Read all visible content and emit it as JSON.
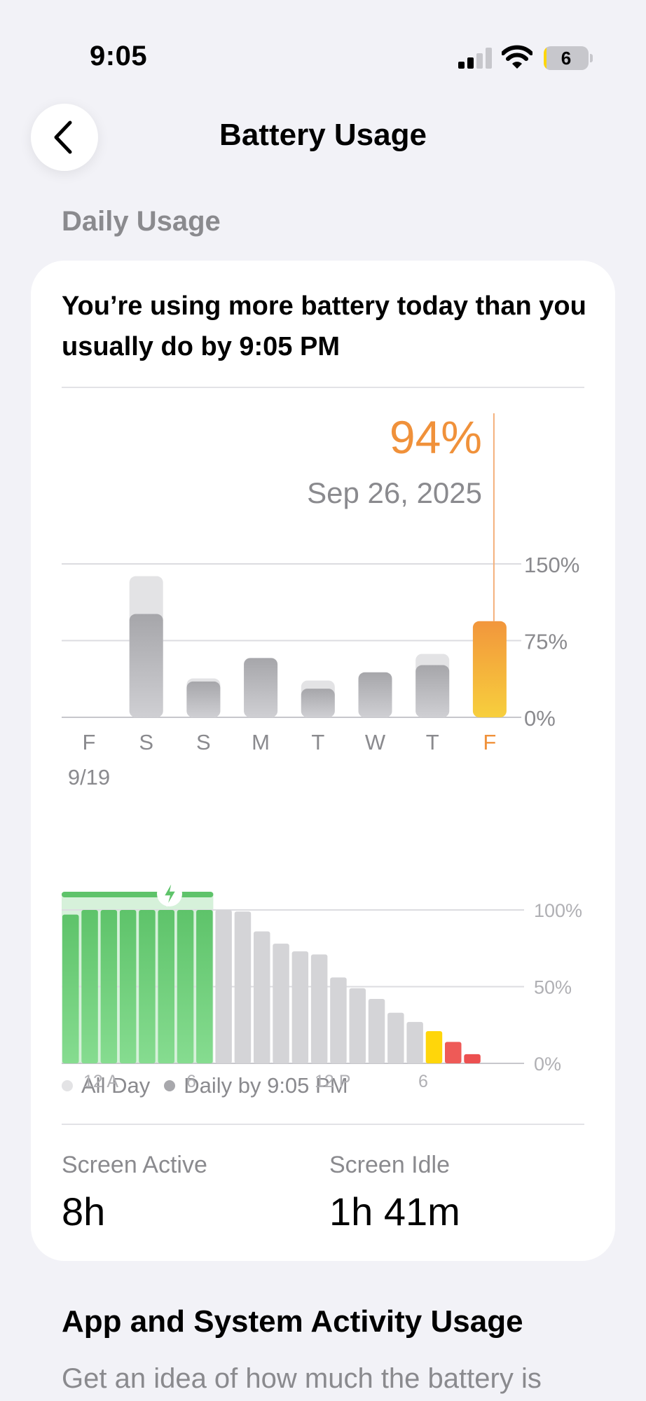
{
  "status_bar": {
    "time": "9:05",
    "battery_level": "6",
    "battery_color": "#ffd60a"
  },
  "nav": {
    "back_icon": "chevron-left-icon",
    "title": "Battery Usage"
  },
  "daily_usage": {
    "section_header": "Daily Usage",
    "headline": "You’re using more battery today than you usually do by 9:05 PM",
    "selected_value": "94%",
    "selected_date": "Sep 26, 2025",
    "legend": {
      "all_day": "All Day",
      "daily_by": "Daily by 9:05 PM"
    },
    "screen_active_label": "Screen Active",
    "screen_active_value": "8h",
    "screen_idle_label": "Screen Idle",
    "screen_idle_value": "1h 41m"
  },
  "colors": {
    "accent_orange": "#f0913a",
    "charge_green": "#5ec36a",
    "gray_bar": "#b7b7bb",
    "light_gray_bar": "#e3e3e5",
    "low_yellow": "#ffd60a",
    "low_red": "#ec5050"
  },
  "chart_data": [
    {
      "type": "bar",
      "title": "",
      "categories": [
        "F",
        "S",
        "S",
        "M",
        "T",
        "W",
        "T",
        "F"
      ],
      "first_date_label": "9/19",
      "selected_index": 7,
      "series": [
        {
          "name": "All Day",
          "values": [
            0,
            138,
            38,
            58,
            36,
            41,
            62,
            94
          ]
        },
        {
          "name": "Daily by 9:05 PM",
          "values": [
            0,
            101,
            35,
            58,
            28,
            44,
            51,
            94
          ]
        }
      ],
      "ylim": [
        0,
        150
      ],
      "y_ticks": [
        "0%",
        "75%",
        "150%"
      ],
      "legend_position": "bottom-left"
    },
    {
      "type": "bar",
      "title": "",
      "x_tick_labels": [
        "12 A",
        "6",
        "12 P",
        "6"
      ],
      "y_ticks": [
        "0%",
        "50%",
        "100%"
      ],
      "ylim": [
        0,
        100
      ],
      "hours": [
        0,
        1,
        2,
        3,
        4,
        5,
        6,
        7,
        8,
        9,
        10,
        11,
        12,
        13,
        14,
        15,
        16,
        17,
        18,
        19,
        20,
        21
      ],
      "values": [
        97,
        100,
        100,
        100,
        100,
        100,
        100,
        100,
        100,
        99,
        86,
        78,
        73,
        71,
        56,
        49,
        42,
        33,
        27,
        21,
        14,
        6
      ],
      "charging_hours": [
        0,
        1,
        2,
        3,
        4,
        5,
        6,
        7
      ],
      "charging_icon": "bolt-icon"
    }
  ],
  "app_activity": {
    "title": "App and System Activity Usage",
    "description": "Get an idea of how much the battery is"
  }
}
